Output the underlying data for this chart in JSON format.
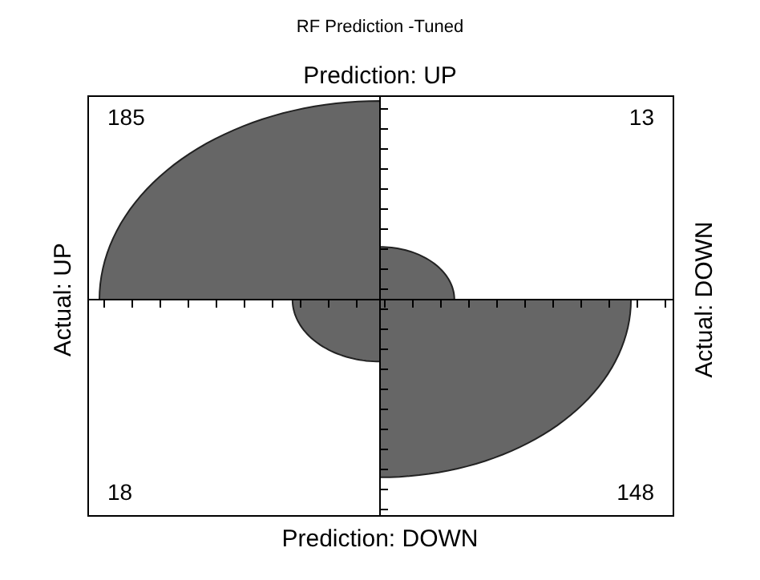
{
  "chart_data": {
    "type": "other",
    "title": "RF Prediction -Tuned",
    "categories": [
      null,
      null,
      null,
      null
    ],
    "values": [
      185,
      13,
      18,
      148
    ],
    "data_labels": true,
    "annotations": [
      "Prediction: UP",
      "Prediction: DOWN",
      "Actual: UP",
      "Actual: DOWN"
    ],
    "color": "#666666"
  }
}
